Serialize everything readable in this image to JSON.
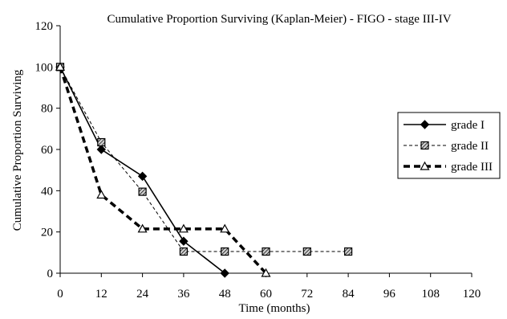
{
  "chart_data": {
    "type": "line",
    "title": "Cumulative Proportion Surviving (Kaplan-Meier) - FIGO - stage III-IV",
    "xlabel": "Time (months)",
    "ylabel": "Cumulative Proportion Surviving",
    "x_ticks": [
      0,
      12,
      24,
      36,
      48,
      60,
      72,
      84,
      96,
      108,
      120
    ],
    "y_ticks": [
      0,
      20,
      40,
      60,
      80,
      100,
      120
    ],
    "xlim": [
      0,
      120
    ],
    "ylim": [
      0,
      120
    ],
    "grid": false,
    "legend_position": "right",
    "series": [
      {
        "name": "grade I",
        "line_style": "solid",
        "marker": "diamond",
        "color": "#000000",
        "x": [
          0,
          12,
          24,
          36,
          48
        ],
        "y": [
          100,
          60,
          47,
          15.5,
          0
        ]
      },
      {
        "name": "grade II",
        "line_style": "dashed",
        "marker": "hatched-square",
        "color": "#000000",
        "x": [
          0,
          12,
          24,
          36,
          48,
          60,
          72,
          84
        ],
        "y": [
          100,
          63.5,
          39.5,
          10.5,
          10.5,
          10.5,
          10.5,
          10.5
        ]
      },
      {
        "name": "grade III",
        "line_style": "heavy-dashed",
        "marker": "open-triangle",
        "color": "#000000",
        "x": [
          0,
          12,
          24,
          36,
          48,
          60
        ],
        "y": [
          100,
          38,
          21.5,
          21.5,
          21.5,
          0
        ]
      }
    ]
  }
}
